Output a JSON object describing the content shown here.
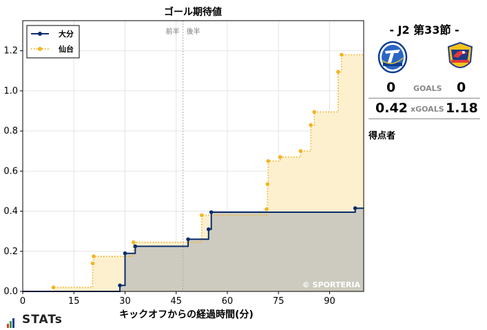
{
  "chart_data": {
    "type": "line",
    "title": "ゴール期待値",
    "xlabel": "キックオフからの経過時間(分)",
    "ylabel": "",
    "xlim": [
      0,
      100
    ],
    "ylim": [
      0,
      1.35
    ],
    "xticks": [
      0,
      15,
      30,
      45,
      60,
      75,
      90
    ],
    "yticks": [
      0.0,
      0.2,
      0.4,
      0.6,
      0.8,
      1.0,
      1.2
    ],
    "grid": true,
    "legend": "top-left",
    "halftime": {
      "x": 47,
      "labels": [
        "前半",
        "後半"
      ]
    },
    "series": [
      {
        "name": "大分",
        "style": "solid-step",
        "color": "#0a2c6b",
        "fill": "#cdcbbf",
        "points": [
          [
            28.5,
            0.03
          ],
          [
            30,
            0.19
          ],
          [
            33,
            0.225
          ],
          [
            48.5,
            0.26
          ],
          [
            54.5,
            0.31
          ],
          [
            55.3,
            0.395
          ],
          [
            97.5,
            0.415
          ],
          [
            100,
            0.415
          ]
        ]
      },
      {
        "name": "仙台",
        "style": "dotted-step",
        "color": "#f5b323",
        "fill": "#fdf0cf",
        "points": [
          [
            9,
            0.02
          ],
          [
            20.5,
            0.14
          ],
          [
            20.8,
            0.175
          ],
          [
            32.5,
            0.245
          ],
          [
            52.5,
            0.38
          ],
          [
            71.5,
            0.41
          ],
          [
            71.8,
            0.535
          ],
          [
            72,
            0.65
          ],
          [
            75.5,
            0.67
          ],
          [
            81.5,
            0.7
          ],
          [
            84.5,
            0.83
          ],
          [
            85.5,
            0.895
          ],
          [
            92.5,
            1.095
          ],
          [
            93.5,
            1.18
          ],
          [
            100,
            1.18
          ]
        ]
      }
    ],
    "watermark": "© SPORTERIA"
  },
  "match": {
    "title": "-  J2 第33節  -",
    "home_crest": "oita-trinita-crest",
    "away_crest": "vegalta-sendai-crest",
    "home_goals": "0",
    "away_goals": "0",
    "goals_label": "GOALS",
    "home_xg": "0.42",
    "away_xg": "1.18",
    "xg_label": "xGOALS",
    "scorers_label": "得点者"
  },
  "brand": {
    "logo_text": "STATs",
    "bar_colors": [
      "#e53a2f",
      "#2e9b4e",
      "#1a3e8f"
    ]
  }
}
